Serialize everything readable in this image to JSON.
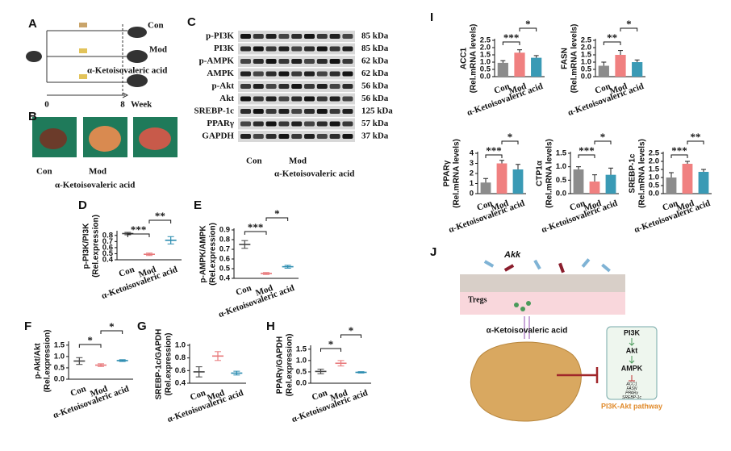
{
  "panels": [
    "A",
    "B",
    "C",
    "D",
    "E",
    "F",
    "G",
    "H",
    "I",
    "J"
  ],
  "panel_a": {
    "groups": [
      "Con",
      "Mod",
      "α-Ketoisovaleric acid"
    ],
    "timeline": [
      "0",
      "8",
      "Week"
    ]
  },
  "panel_b": {
    "groups": [
      "Con",
      "Mod",
      "α-Ketoisovaleric acid"
    ]
  },
  "panel_c": {
    "rows": [
      {
        "protein": "p-PI3K",
        "size": "85 kDa"
      },
      {
        "protein": "PI3K",
        "size": "85 kDa"
      },
      {
        "protein": "p-AMPK",
        "size": "62 kDa"
      },
      {
        "protein": "AMPK",
        "size": "62 kDa"
      },
      {
        "protein": "p-Akt",
        "size": "56 kDa"
      },
      {
        "protein": "Akt",
        "size": "56 kDa"
      },
      {
        "protein": "SREBP-1c",
        "size": "125 kDa"
      },
      {
        "protein": "PPARγ",
        "size": "57 kDa"
      },
      {
        "protein": "GAPDH",
        "size": "37 kDa"
      }
    ],
    "groups": [
      "Con",
      "Mod",
      "α-Ketoisovaleric acid"
    ]
  },
  "chart_data": [
    {
      "type": "errorbar",
      "ylabel": [
        "p-PI3K/PI3K",
        "(Rel.expression)"
      ],
      "categories": [
        "Con",
        "Mod",
        "α-Ketoisovaleric acid"
      ],
      "values": [
        0.83,
        0.49,
        0.72
      ],
      "errors": [
        0.02,
        0.02,
        0.06
      ],
      "colors": [
        "#444444",
        "#e8787a",
        "#2b8cb0"
      ],
      "ylim": [
        0.4,
        0.85
      ],
      "yticks": [
        0.4,
        0.5,
        0.6,
        0.7,
        0.8
      ],
      "comparisons": [
        {
          "pair": [
            "Con",
            "Mod"
          ],
          "label": "***"
        },
        {
          "pair": [
            "Mod",
            "α-Ketoisovaleric acid"
          ],
          "label": "**"
        }
      ]
    },
    {
      "type": "errorbar",
      "ylabel": [
        "p-AMPK/AMPK",
        "(Rel.expression)"
      ],
      "categories": [
        "Con",
        "Mod",
        "α-Ketoisovaleric acid"
      ],
      "values": [
        0.75,
        0.45,
        0.52
      ],
      "errors": [
        0.04,
        0.01,
        0.015
      ],
      "colors": [
        "#444444",
        "#e8787a",
        "#2b8cb0"
      ],
      "ylim": [
        0.4,
        0.9
      ],
      "yticks": [
        0.4,
        0.5,
        0.6,
        0.7,
        0.8,
        0.9
      ],
      "comparisons": [
        {
          "pair": [
            "Con",
            "Mod"
          ],
          "label": "***"
        },
        {
          "pair": [
            "Mod",
            "α-Ketoisovaleric acid"
          ],
          "label": "*"
        }
      ]
    },
    {
      "type": "errorbar",
      "ylabel": [
        "p-Akt/Akt",
        "(Rel.expression)"
      ],
      "categories": [
        "Con",
        "Mod",
        "α-Ketoisovaleric acid"
      ],
      "values": [
        0.8,
        0.62,
        0.82
      ],
      "errors": [
        0.15,
        0.06,
        0.04
      ],
      "colors": [
        "#444444",
        "#e8787a",
        "#2b8cb0"
      ],
      "ylim": [
        0,
        1.6
      ],
      "yticks": [
        {
          "value": 0,
          "label": "0.0"
        },
        0.5,
        {
          "value": 1,
          "label": "1.0"
        },
        1.5
      ],
      "comparisons": [
        {
          "pair": [
            "Con",
            "Mod"
          ],
          "label": "*"
        },
        {
          "pair": [
            "Mod",
            "α-Ketoisovaleric acid"
          ],
          "label": "*"
        }
      ]
    },
    {
      "type": "errorbar",
      "ylabel": [
        "SREBP-1c/GAPDH",
        "(Rel.expression)"
      ],
      "categories": [
        "Con",
        "Mod",
        "α-Ketoisovaleric acid"
      ],
      "values": [
        0.58,
        0.83,
        0.56
      ],
      "errors": [
        0.08,
        0.07,
        0.03
      ],
      "colors": [
        "#444444",
        "#e8787a",
        "#2b8cb0"
      ],
      "ylim": [
        0.4,
        1
      ],
      "yticks": [
        0.4,
        0.6,
        0.8,
        {
          "value": 1,
          "label": "1.0"
        }
      ],
      "comparisons": []
    },
    {
      "type": "errorbar",
      "ylabel": [
        "PPARγ/GAPDH",
        "(Rel.expression)"
      ],
      "categories": [
        "Con",
        "Mod",
        "α-Ketoisovaleric acid"
      ],
      "values": [
        0.52,
        0.88,
        0.48
      ],
      "errors": [
        0.1,
        0.12,
        0.03
      ],
      "colors": [
        "#444444",
        "#e8787a",
        "#2b8cb0"
      ],
      "ylim": [
        0,
        1.6
      ],
      "yticks": [
        {
          "value": 0,
          "label": "0.0"
        },
        0.5,
        {
          "value": 1,
          "label": "1.0"
        },
        1.5
      ],
      "comparisons": [
        {
          "pair": [
            "Con",
            "Mod"
          ],
          "label": "*"
        },
        {
          "pair": [
            "Mod",
            "α-Ketoisovaleric acid"
          ],
          "label": "*"
        }
      ]
    },
    {
      "type": "bar",
      "ylabel": [
        "ACC1",
        "(Rel.mRNA levels)"
      ],
      "categories": [
        "Con",
        "Mod",
        "α-Ketoisovaleric acid"
      ],
      "values": [
        0.95,
        1.65,
        1.3
      ],
      "errors": [
        0.15,
        0.2,
        0.15
      ],
      "colors": [
        "#8c8c8c",
        "#f08080",
        "#3a9ab5"
      ],
      "ylim": [
        0,
        2.5
      ],
      "yticks": [
        {
          "value": 0,
          "label": "0.0"
        },
        0.5,
        {
          "value": 1,
          "label": "1.0"
        },
        1.5,
        {
          "value": 2,
          "label": "2.0"
        },
        2.5
      ],
      "comparisons": [
        {
          "pair": [
            "Con",
            "Mod"
          ],
          "label": "***"
        },
        {
          "pair": [
            "Mod",
            "α-Ketoisovaleric acid"
          ],
          "label": "*"
        }
      ]
    },
    {
      "type": "bar",
      "ylabel": [
        "FASN",
        "(Rel.mRNA levels)"
      ],
      "categories": [
        "Con",
        "Mod",
        "α-Ketoisovaleric acid"
      ],
      "values": [
        0.75,
        1.5,
        1.0
      ],
      "errors": [
        0.25,
        0.3,
        0.15
      ],
      "colors": [
        "#8c8c8c",
        "#f08080",
        "#3a9ab5"
      ],
      "ylim": [
        0,
        2.5
      ],
      "yticks": [
        {
          "value": 0,
          "label": "0.0"
        },
        0.5,
        {
          "value": 1,
          "label": "1.0"
        },
        1.5,
        {
          "value": 2,
          "label": "2.0"
        },
        2.5
      ],
      "comparisons": [
        {
          "pair": [
            "Con",
            "Mod"
          ],
          "label": "**"
        },
        {
          "pair": [
            "Mod",
            "α-Ketoisovaleric acid"
          ],
          "label": "*"
        }
      ]
    },
    {
      "type": "bar",
      "ylabel": [
        "PPARγ",
        "(Rel.mRNA levels)"
      ],
      "categories": [
        "Con",
        "Mod",
        "α-Ketoisovaleric acid"
      ],
      "values": [
        1.1,
        3.0,
        2.4
      ],
      "errors": [
        0.4,
        0.3,
        0.5
      ],
      "colors": [
        "#8c8c8c",
        "#f08080",
        "#3a9ab5"
      ],
      "ylim": [
        0,
        4
      ],
      "yticks": [
        0,
        1,
        2,
        3,
        4
      ],
      "comparisons": [
        {
          "pair": [
            "Con",
            "Mod"
          ],
          "label": "***"
        },
        {
          "pair": [
            "Mod",
            "α-Ketoisovaleric acid"
          ],
          "label": "*"
        }
      ]
    },
    {
      "type": "bar",
      "ylabel": [
        "CTP1α",
        "(Rel.mRNA levels)"
      ],
      "categories": [
        "Con",
        "Mod",
        "α-Ketoisovaleric acid"
      ],
      "values": [
        0.9,
        0.45,
        0.7
      ],
      "errors": [
        0.1,
        0.25,
        0.25
      ],
      "colors": [
        "#8c8c8c",
        "#f08080",
        "#3a9ab5"
      ],
      "ylim": [
        0,
        1.5
      ],
      "yticks": [
        {
          "value": 0,
          "label": "0.0"
        },
        0.5,
        {
          "value": 1,
          "label": "1.0"
        },
        1.5
      ],
      "comparisons": [
        {
          "pair": [
            "Con",
            "Mod"
          ],
          "label": "***"
        },
        {
          "pair": [
            "Mod",
            "α-Ketoisovaleric acid"
          ],
          "label": "*"
        }
      ]
    },
    {
      "type": "bar",
      "ylabel": [
        "SREBP-1c",
        "(Rel.mRNA levels)"
      ],
      "categories": [
        "Con",
        "Mod",
        "α-Ketoisovaleric acid"
      ],
      "values": [
        1.0,
        1.85,
        1.35
      ],
      "errors": [
        0.3,
        0.15,
        0.15
      ],
      "colors": [
        "#8c8c8c",
        "#f08080",
        "#3a9ab5"
      ],
      "ylim": [
        0,
        2.5
      ],
      "yticks": [
        {
          "value": 0,
          "label": "0.0"
        },
        0.5,
        {
          "value": 1,
          "label": "1.0"
        },
        1.5,
        {
          "value": 2,
          "label": "2.0"
        },
        2.5
      ],
      "comparisons": [
        {
          "pair": [
            "Con",
            "Mod"
          ],
          "label": "***"
        },
        {
          "pair": [
            "Mod",
            "α-Ketoisovaleric acid"
          ],
          "label": "**"
        }
      ]
    }
  ],
  "panel_j": {
    "bacteria": "Akk",
    "cells": "Tregs",
    "compound": "α-Ketoisovaleric acid",
    "pathway": [
      "PI3K",
      "Akt",
      "AMPK"
    ],
    "targets": [
      "ACC1",
      "FASN",
      "PPARγ",
      "SREBP-1c"
    ],
    "pathway_name": "PI3K-Akt pathway"
  }
}
